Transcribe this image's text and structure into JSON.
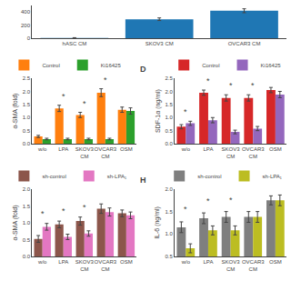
{
  "chart_data": [
    {
      "type": "bar",
      "categories": [
        "hASC CM",
        "SKOV3 CM",
        "OVCAR3 CM"
      ],
      "values": [
        2,
        290,
        420
      ],
      "errors": [
        5,
        20,
        30
      ],
      "ylim": [
        0,
        500
      ],
      "yticks": [
        0,
        200,
        400
      ],
      "grid": false
    },
    {
      "type": "bar",
      "categories": [
        "w/o",
        "LPA",
        "SKOV3\nCM",
        "OVCAR3\nCM",
        "OSM"
      ],
      "series": [
        {
          "name": "Control",
          "values": [
            0.28,
            1.35,
            1.1,
            1.95,
            1.3
          ],
          "errors": [
            0.04,
            0.12,
            0.1,
            0.15,
            0.1
          ]
        },
        {
          "name": "Ki16425",
          "values": [
            0.18,
            0.18,
            0.18,
            0.18,
            1.25
          ],
          "errors": [
            0.03,
            0.03,
            0.03,
            0.03,
            0.12
          ]
        }
      ],
      "ylabel": "α-SMA (fold)",
      "ylim": [
        0,
        2.5
      ],
      "yticks": [
        {
          "value": 0,
          "label": "0.0"
        },
        0.5,
        {
          "value": 1.0,
          "label": "1.0"
        },
        1.5,
        {
          "value": 2.0,
          "label": "2.0"
        },
        2.5
      ],
      "legend": "upper left",
      "grid": false,
      "annotations": [
        {
          "x": 1,
          "y": 1.55,
          "text": "*"
        },
        {
          "x": 2,
          "y": 1.28,
          "text": "*"
        },
        {
          "x": 3,
          "y": 2.2,
          "text": "*"
        }
      ]
    },
    {
      "type": "bar",
      "title": "D",
      "categories": [
        "w/o",
        "LPA",
        "SKOV3\nCM",
        "OVCAR3\nCM",
        "OSM"
      ],
      "series": [
        {
          "name": "Control",
          "values": [
            0.65,
            1.95,
            1.75,
            1.75,
            2.05
          ],
          "errors": [
            0.08,
            0.1,
            0.12,
            0.12,
            0.1
          ]
        },
        {
          "name": "Ki16425",
          "values": [
            0.78,
            0.9,
            0.45,
            0.58,
            1.88
          ],
          "errors": [
            0.08,
            0.1,
            0.07,
            0.08,
            0.12
          ]
        }
      ],
      "ylabel": "SDF-1α (ng/ml)",
      "ylim": [
        0,
        2.5
      ],
      "yticks": [
        {
          "value": 0.0,
          "label": "0.0"
        },
        0.5,
        {
          "value": 1.0,
          "label": "1.0"
        },
        1.5,
        {
          "value": 2.0,
          "label": "2.0"
        },
        2.5
      ],
      "legend": "upper left",
      "grid": false,
      "annotations": [
        {
          "x": 0,
          "y": 0.98,
          "text": "*"
        },
        {
          "x": 1,
          "y": 2.15,
          "text": "*"
        },
        {
          "x": 2,
          "y": 1.98,
          "text": "*"
        },
        {
          "x": 3,
          "y": 1.98,
          "text": "*"
        }
      ]
    },
    {
      "type": "bar",
      "categories": [
        "w/o",
        "LPA",
        "SKOV3\nCM",
        "OVCAR3\nCM",
        "OSM"
      ],
      "series": [
        {
          "name": "sh-control",
          "values": [
            0.52,
            0.95,
            1.05,
            1.42,
            1.28
          ],
          "errors": [
            0.1,
            0.1,
            0.12,
            0.14,
            0.1
          ]
        },
        {
          "name": "sh-LPA₁",
          "values": [
            0.88,
            0.58,
            0.68,
            1.32,
            1.22
          ],
          "errors": [
            0.1,
            0.08,
            0.08,
            0.12,
            0.1
          ]
        }
      ],
      "ylabel": "α-SMA (fold)",
      "ylim": [
        0,
        2.0
      ],
      "yticks": [
        {
          "value": 0,
          "label": "0.0"
        },
        0.5,
        {
          "value": 1.0,
          "label": "1.0"
        },
        1.5,
        {
          "value": 2.0,
          "label": "2.0"
        }
      ],
      "legend": "upper left",
      "grid": false,
      "annotations": [
        {
          "x": 0,
          "y": 1.08,
          "text": "*"
        },
        {
          "x": 1,
          "y": 1.15,
          "text": "*"
        },
        {
          "x": 2,
          "y": 1.28,
          "text": "*"
        }
      ]
    },
    {
      "type": "bar",
      "title": "H",
      "categories": [
        "w/o",
        "LPA",
        "SKOV3\nCM",
        "OVCAR3\nCM",
        "OSM"
      ],
      "series": [
        {
          "name": "sh-control",
          "values": [
            1.15,
            1.35,
            1.38,
            1.38,
            1.75
          ],
          "errors": [
            0.12,
            0.12,
            0.12,
            0.12,
            0.1
          ]
        },
        {
          "name": "sh-LPA₁",
          "values": [
            0.68,
            1.08,
            1.08,
            1.38,
            1.75
          ],
          "errors": [
            0.1,
            0.1,
            0.1,
            0.12,
            0.12
          ]
        }
      ],
      "ylabel": "IL-6 (ng/ml)",
      "ylim": [
        0.5,
        2.0
      ],
      "yticks": [
        0.5,
        {
          "value": 1.0,
          "label": "1.0"
        },
        1.5,
        {
          "value": 2.0,
          "label": "2.0"
        }
      ],
      "legend": "upper left",
      "grid": false,
      "annotations": [
        {
          "x": 0,
          "y": 1.42,
          "text": "*"
        },
        {
          "x": 1,
          "y": 1.6,
          "text": "*"
        },
        {
          "x": 2,
          "y": 1.62,
          "text": "*"
        }
      ]
    }
  ]
}
